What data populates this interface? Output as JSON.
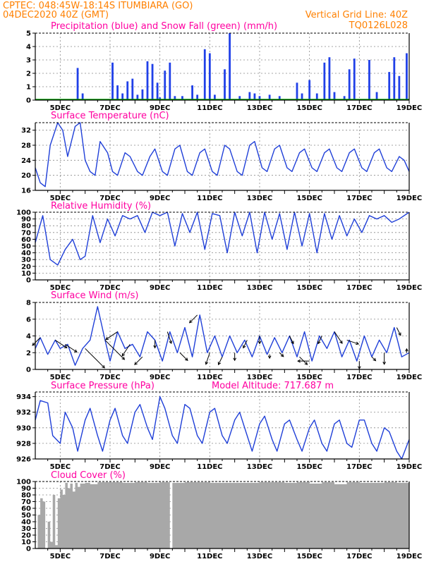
{
  "header": {
    "line1": "CPTEC:   048:45W-18:14S   ITUMBIARA (GO)",
    "line2": "04DEC2020 40Z (GMT)",
    "right1": "Vertical Grid Line: 40Z",
    "right2": "TQ0126L028"
  },
  "colors": {
    "header": "#ff8000",
    "title": "#ff00a0",
    "line": "#1f3fd8",
    "precip": "#2040e8",
    "snow": "#00a000",
    "cloud": "#a8a8a8"
  },
  "x_ticks": [
    "5DEC",
    "7DEC",
    "9DEC",
    "11DEC",
    "13DEC",
    "15DEC",
    "17DEC",
    "19DEC"
  ],
  "chart_data": [
    {
      "id": "precip",
      "type": "bar",
      "title": "Precipitation (blue) and Snow Fall (green) (mm/h)",
      "ylim": [
        0,
        5
      ],
      "yticks": [
        0,
        1,
        2,
        3,
        4,
        5
      ],
      "series": [
        {
          "name": "Precipitation",
          "color": "#2040e8",
          "x": [
            5.7,
            5.9,
            7.1,
            7.3,
            7.5,
            7.7,
            7.9,
            8.1,
            8.3,
            8.5,
            8.7,
            8.9,
            9.0,
            9.2,
            9.4,
            9.6,
            9.9,
            10.3,
            10.5,
            10.8,
            11.0,
            11.2,
            11.6,
            11.8,
            12.2,
            12.6,
            12.8,
            13.0,
            13.4,
            13.8,
            14.5,
            14.7,
            15.0,
            15.3,
            15.6,
            15.8,
            16.0,
            16.4,
            16.6,
            16.8,
            17.4,
            17.7,
            18.2,
            18.4,
            18.6,
            18.9
          ],
          "values": [
            2.4,
            0.5,
            2.8,
            1.1,
            0.5,
            1.4,
            1.6,
            0.4,
            0.8,
            2.9,
            2.7,
            1.3,
            0.2,
            2.2,
            2.8,
            0.3,
            0.3,
            1.1,
            0.4,
            3.8,
            3.5,
            0.4,
            2.3,
            5.0,
            0.3,
            0.6,
            0.5,
            0.3,
            0.4,
            0.3,
            1.3,
            0.5,
            1.5,
            0.5,
            2.8,
            3.2,
            0.6,
            0.3,
            2.3,
            3.1,
            3.0,
            0.6,
            2.1,
            3.2,
            1.8,
            3.5
          ]
        },
        {
          "name": "Snow Fall",
          "color": "#00a000",
          "x": [],
          "values": []
        }
      ]
    },
    {
      "id": "temperature",
      "type": "line",
      "title": "Surface Temperature (nC)",
      "ylim": [
        16,
        34
      ],
      "yticks": [
        16,
        20,
        24,
        28,
        32
      ],
      "x": [
        4.0,
        4.2,
        4.4,
        4.6,
        4.9,
        5.1,
        5.3,
        5.6,
        5.8,
        6.0,
        6.2,
        6.4,
        6.6,
        6.9,
        7.1,
        7.3,
        7.6,
        7.8,
        8.1,
        8.3,
        8.6,
        8.8,
        9.1,
        9.3,
        9.6,
        9.8,
        10.1,
        10.3,
        10.6,
        10.8,
        11.1,
        11.3,
        11.6,
        11.8,
        12.1,
        12.3,
        12.6,
        12.8,
        13.1,
        13.3,
        13.6,
        13.8,
        14.1,
        14.3,
        14.6,
        14.8,
        15.1,
        15.3,
        15.6,
        15.8,
        16.1,
        16.3,
        16.6,
        16.8,
        17.1,
        17.3,
        17.6,
        17.8,
        18.1,
        18.3,
        18.6,
        18.8,
        19.0
      ],
      "values": [
        22,
        18,
        17,
        28,
        34,
        32,
        25,
        33,
        34,
        24,
        21,
        20,
        29,
        26,
        21,
        20,
        26,
        25,
        21,
        20,
        25,
        27,
        21,
        20,
        27,
        28,
        21,
        20,
        26,
        27,
        21,
        20,
        28,
        27,
        21,
        20,
        28,
        29,
        22,
        21,
        27,
        28,
        22,
        21,
        26,
        27,
        22,
        21,
        26,
        27,
        22,
        21,
        26,
        27,
        22,
        21,
        26,
        27,
        22,
        21,
        25,
        24,
        21
      ]
    },
    {
      "id": "humidity",
      "type": "line",
      "title": "Relative Humidity (%)",
      "ylim": [
        0,
        100
      ],
      "yticks": [
        0,
        10,
        20,
        30,
        40,
        50,
        60,
        70,
        80,
        90,
        100
      ],
      "x": [
        4.0,
        4.3,
        4.6,
        4.9,
        5.2,
        5.5,
        5.8,
        6.0,
        6.3,
        6.6,
        6.9,
        7.2,
        7.5,
        7.8,
        8.1,
        8.4,
        8.7,
        9.0,
        9.3,
        9.6,
        9.9,
        10.2,
        10.5,
        10.8,
        11.1,
        11.4,
        11.7,
        12.0,
        12.3,
        12.6,
        12.9,
        13.2,
        13.5,
        13.8,
        14.1,
        14.4,
        14.7,
        15.0,
        15.3,
        15.6,
        15.9,
        16.2,
        16.5,
        16.8,
        17.1,
        17.4,
        17.7,
        18.0,
        18.3,
        18.6,
        19.0
      ],
      "values": [
        55,
        95,
        30,
        22,
        45,
        60,
        30,
        35,
        95,
        55,
        90,
        65,
        95,
        90,
        95,
        70,
        100,
        95,
        100,
        50,
        98,
        70,
        100,
        45,
        98,
        95,
        40,
        100,
        65,
        100,
        40,
        100,
        60,
        98,
        45,
        100,
        50,
        98,
        40,
        98,
        60,
        95,
        65,
        90,
        70,
        95,
        90,
        95,
        85,
        90,
        100
      ]
    },
    {
      "id": "wind",
      "type": "line",
      "title": "Surface Wind (m/s)",
      "ylim": [
        0,
        8
      ],
      "yticks": [
        0,
        2,
        4,
        6,
        8
      ],
      "x": [
        4.0,
        4.2,
        4.5,
        4.8,
        5.0,
        5.3,
        5.6,
        5.9,
        6.2,
        6.5,
        6.8,
        7.0,
        7.3,
        7.6,
        7.9,
        8.2,
        8.5,
        8.8,
        9.1,
        9.4,
        9.7,
        10.0,
        10.3,
        10.6,
        10.9,
        11.2,
        11.5,
        11.8,
        12.1,
        12.4,
        12.7,
        13.0,
        13.3,
        13.6,
        13.9,
        14.2,
        14.5,
        14.8,
        15.1,
        15.4,
        15.7,
        16.0,
        16.3,
        16.6,
        16.9,
        17.2,
        17.5,
        17.8,
        18.1,
        18.4,
        18.7,
        19.0
      ],
      "values": [
        2.5,
        3.8,
        1.8,
        3.5,
        2.5,
        3.0,
        0.5,
        2.5,
        3.5,
        7.5,
        3.5,
        1.0,
        4.5,
        2.5,
        3.0,
        1.5,
        4.5,
        3.5,
        1.0,
        4.5,
        2.0,
        5.0,
        1.5,
        6.5,
        2.0,
        4.0,
        1.5,
        4.0,
        2.0,
        3.5,
        1.5,
        4.0,
        1.8,
        3.8,
        2.0,
        4.0,
        1.5,
        4.5,
        1.0,
        4.0,
        2.5,
        4.5,
        1.5,
        3.5,
        1.0,
        4.0,
        1.5,
        3.5,
        2.0,
        5.0,
        1.5,
        2.0
      ],
      "arrows": {
        "x": [
          4.2,
          4.8,
          5.2,
          6.0,
          6.8,
          7.3,
          7.8,
          8.3,
          8.8,
          9.3,
          9.8,
          10.5,
          11.0,
          11.5,
          12.0,
          12.5,
          13.0,
          13.4,
          13.8,
          14.2,
          14.6,
          15.0,
          15.5,
          16.0,
          16.5,
          17.0,
          17.5,
          18.0,
          18.5,
          18.9
        ],
        "u": [
          -1.0,
          1.5,
          1.5,
          2.5,
          2.5,
          -1.5,
          -1.0,
          -1.0,
          0.0,
          0.5,
          1.0,
          -1.0,
          -0.5,
          -0.5,
          0.0,
          -0.5,
          0.0,
          0.0,
          0.5,
          0.5,
          1.0,
          -1.5,
          -0.5,
          1.0,
          1.5,
          0.0,
          0.5,
          0.0,
          0.5,
          0.0
        ],
        "v": [
          -1.0,
          -1.0,
          -1.0,
          -2.5,
          -2.5,
          -1.0,
          -1.5,
          -1.0,
          -1.0,
          -1.5,
          -1.0,
          -1.0,
          -1.5,
          -1.0,
          -1.0,
          -1.0,
          -1.0,
          -0.5,
          -0.5,
          -1.0,
          -1.0,
          0.0,
          -1.0,
          -1.5,
          -0.5,
          -1.0,
          -0.5,
          -1.5,
          -1.0,
          0.5
        ]
      }
    },
    {
      "id": "pressure",
      "type": "line",
      "title": "Surface Pressure (hPa)",
      "annotation": "Model Altitude: 717.687  m",
      "ylim": [
        926,
        934.6
      ],
      "yticks": [
        926,
        928,
        930,
        932,
        934
      ],
      "x": [
        4.0,
        4.2,
        4.5,
        4.7,
        5.0,
        5.2,
        5.5,
        5.7,
        6.0,
        6.2,
        6.5,
        6.7,
        7.0,
        7.2,
        7.5,
        7.7,
        8.0,
        8.2,
        8.5,
        8.7,
        9.0,
        9.2,
        9.5,
        9.7,
        10.0,
        10.2,
        10.5,
        10.7,
        11.0,
        11.2,
        11.5,
        11.7,
        12.0,
        12.2,
        12.5,
        12.7,
        13.0,
        13.2,
        13.5,
        13.7,
        14.0,
        14.2,
        14.5,
        14.7,
        15.0,
        15.2,
        15.5,
        15.7,
        16.0,
        16.2,
        16.5,
        16.7,
        17.0,
        17.2,
        17.5,
        17.7,
        18.0,
        18.2,
        18.5,
        18.7,
        19.0
      ],
      "values": [
        931,
        933.5,
        933.2,
        929,
        928,
        932,
        930,
        927,
        931,
        932.5,
        929,
        927,
        931,
        932.5,
        929,
        928,
        932,
        933,
        930,
        928.5,
        934,
        932.5,
        929,
        928,
        933,
        932.5,
        929,
        928,
        932,
        932.5,
        929,
        928,
        931,
        932,
        929,
        927,
        930.5,
        931.5,
        928.5,
        927,
        930.5,
        931,
        928.5,
        927,
        930,
        931,
        928,
        927,
        930.5,
        931,
        928,
        927.5,
        931,
        931,
        928,
        927,
        930,
        929.5,
        927,
        926,
        928.5
      ]
    },
    {
      "id": "cloud",
      "type": "area",
      "title": "Cloud Cover (%)",
      "ylim": [
        0,
        100
      ],
      "yticks": [
        0,
        10,
        20,
        30,
        40,
        50,
        60,
        70,
        80,
        90,
        100
      ],
      "x": [
        4.0,
        4.1,
        4.2,
        4.3,
        4.4,
        4.5,
        4.6,
        4.7,
        4.8,
        4.9,
        5.0,
        5.1,
        5.2,
        5.3,
        5.4,
        5.5,
        5.6,
        5.7,
        5.8,
        6.0,
        6.2,
        6.5,
        7.0,
        7.5,
        8.0,
        8.5,
        9.0,
        9.3,
        9.4,
        9.5,
        10.0,
        11.0,
        12.0,
        13.0,
        14.0,
        14.5,
        15.0,
        15.5,
        16.0,
        16.5,
        17.0,
        17.5,
        18.0,
        18.5,
        19.0
      ],
      "values": [
        0,
        50,
        75,
        70,
        0,
        40,
        10,
        80,
        5,
        75,
        88,
        80,
        98,
        90,
        97,
        85,
        98,
        92,
        97,
        98,
        96,
        99,
        99,
        98,
        99,
        98,
        99,
        99,
        0,
        98,
        99,
        98,
        98,
        99,
        98,
        99,
        97,
        99,
        96,
        99,
        98,
        98,
        99,
        98,
        97
      ]
    }
  ]
}
